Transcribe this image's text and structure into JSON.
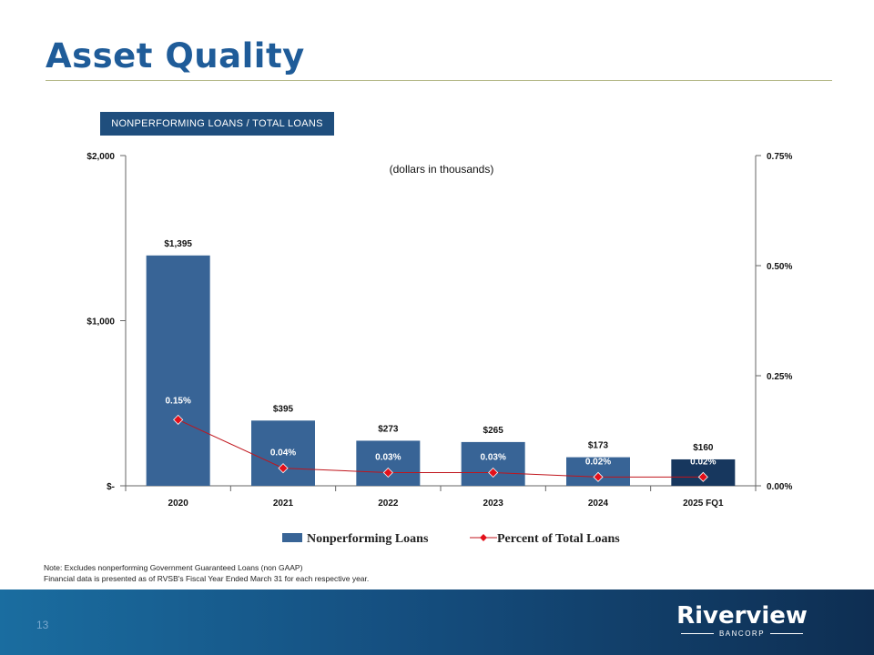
{
  "page": {
    "title": "Asset Quality",
    "chip": "NONPERFORMING LOANS / TOTAL LOANS",
    "page_number": "13"
  },
  "chart_data": {
    "type": "bar",
    "subtitle": "(dollars in thousands)",
    "categories": [
      "2020",
      "2021",
      "2022",
      "2023",
      "2024",
      "2025 FQ1"
    ],
    "series": [
      {
        "name": "Nonperforming Loans",
        "axis": "left",
        "values": [
          1395,
          395,
          273,
          265,
          173,
          160
        ],
        "labels": [
          "$1,395",
          "$395",
          "$273",
          "$265",
          "$173",
          "$160"
        ]
      },
      {
        "name": "Percent of Total Loans",
        "type": "line",
        "axis": "right",
        "values": [
          0.15,
          0.04,
          0.03,
          0.03,
          0.02,
          0.02
        ],
        "labels": [
          "0.15%",
          "0.04%",
          "0.03%",
          "0.03%",
          "0.02%",
          "0.02%"
        ]
      }
    ],
    "y_left": {
      "ylim": [
        0,
        2000
      ],
      "ticks": [
        0,
        1000,
        2000
      ],
      "tick_labels": [
        "$-",
        "$1,000",
        "$2,000"
      ]
    },
    "y_right": {
      "ylim": [
        0,
        0.75
      ],
      "ticks": [
        0,
        0.25,
        0.5,
        0.75
      ],
      "tick_labels": [
        "0.00%",
        "0.25%",
        "0.50%",
        "0.75%"
      ]
    },
    "legend": [
      "Nonperforming Loans",
      "Percent of Total Loans"
    ],
    "legend_position": "bottom",
    "colors": {
      "bar": "#386496",
      "bar_last": "#17375e",
      "line": "#c0151c",
      "marker": "#e3101a"
    }
  },
  "notes": [
    "Note: Excludes nonperforming Government Guaranteed Loans (non GAAP)",
    "Financial data is presented as of RVSB's Fiscal Year Ended March 31 for each respective year."
  ],
  "logo": {
    "name": "Riverview",
    "sub": "BANCORP"
  }
}
